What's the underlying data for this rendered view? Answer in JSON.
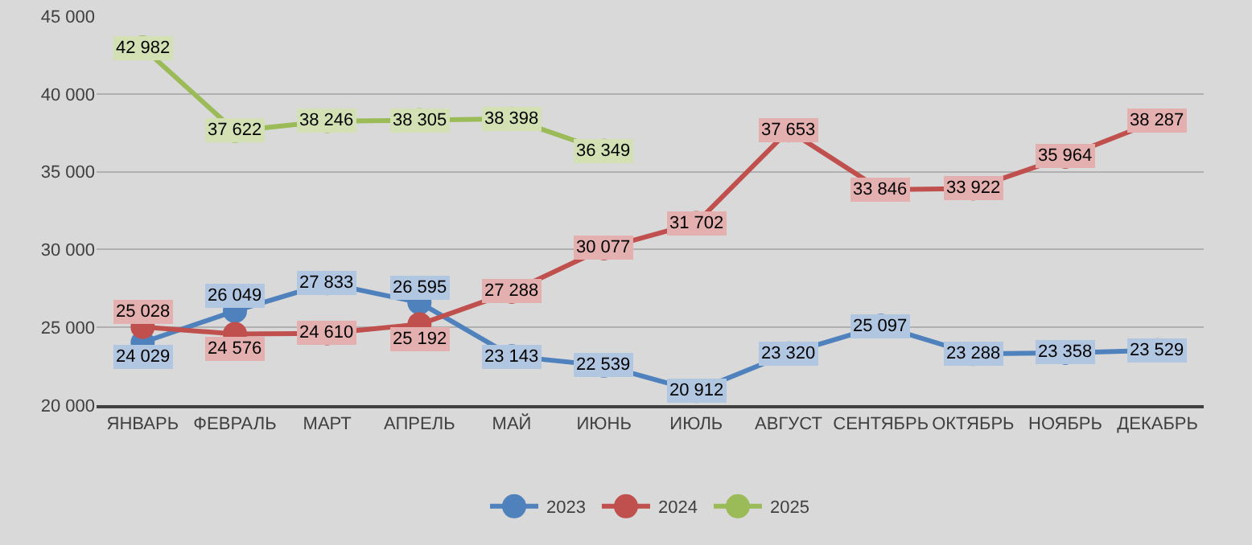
{
  "chart_data": {
    "type": "line",
    "categories": [
      "ЯНВАРЬ",
      "ФЕВРАЛЬ",
      "МАРТ",
      "АПРЕЛЬ",
      "МАЙ",
      "ИЮНЬ",
      "ИЮЛЬ",
      "АВГУСТ",
      "СЕНТЯБРЬ",
      "ОКТЯБРЬ",
      "НОЯБРЬ",
      "ДЕКАБРЬ"
    ],
    "series": [
      {
        "name": "2023",
        "color": "#4f81bd",
        "values": [
          24029,
          26049,
          27833,
          26595,
          23143,
          22539,
          20912,
          23320,
          25097,
          23288,
          23358,
          23529
        ],
        "value_labels": [
          "24 029",
          "26 049",
          "27 833",
          "26 595",
          "23 143",
          "22 539",
          "20 912",
          "23 320",
          "25 097",
          "23 288",
          "23 358",
          "23 529"
        ]
      },
      {
        "name": "2024",
        "color": "#c0504d",
        "values": [
          25028,
          24576,
          24610,
          25192,
          27288,
          30077,
          31702,
          37653,
          33846,
          33922,
          35964,
          38287
        ],
        "value_labels": [
          "25 028",
          "24 576",
          "24 610",
          "25 192",
          "27 288",
          "30 077",
          "31 702",
          "37 653",
          "33 846",
          "33 922",
          "35 964",
          "38 287"
        ]
      },
      {
        "name": "2025",
        "color": "#9bbb59",
        "values": [
          42982,
          37622,
          38246,
          38305,
          38398,
          36349,
          null,
          null,
          null,
          null,
          null,
          null
        ],
        "value_labels": [
          "42 982",
          "37 622",
          "38 246",
          "38 305",
          "38 398",
          "36 349",
          null,
          null,
          null,
          null,
          null,
          null
        ]
      }
    ],
    "ylim": [
      20000,
      45000
    ],
    "yticks": [
      {
        "value": 20000,
        "label": "20 000"
      },
      {
        "value": 25000,
        "label": "25 000"
      },
      {
        "value": 30000,
        "label": "30 000"
      },
      {
        "value": 35000,
        "label": "35 000"
      },
      {
        "value": 40000,
        "label": "40 000"
      },
      {
        "value": 45000,
        "label": "45 000"
      }
    ],
    "grid": "y",
    "legend": "bottom",
    "marker": "circle",
    "line_style": "solid"
  }
}
